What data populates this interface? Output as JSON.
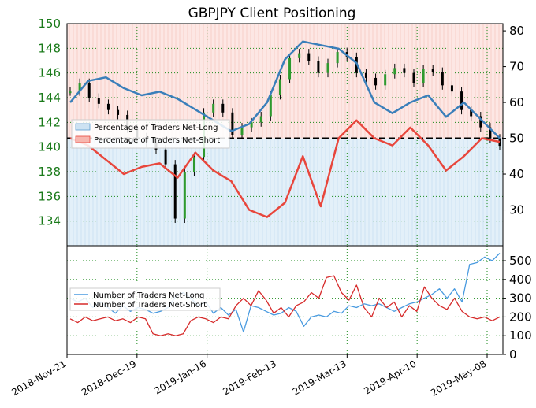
{
  "chart_data": [
    {
      "type": "line",
      "title": "GBPJPY Client Positioning",
      "price_axis": {
        "side": "left",
        "ylim": [
          132,
          150
        ],
        "ticks": [
          "134",
          "136",
          "138",
          "140",
          "142",
          "144",
          "146",
          "148",
          "150"
        ]
      },
      "sentiment_axis": {
        "side": "right",
        "ylim": [
          20,
          82
        ],
        "ticks": [
          "30",
          "40",
          "50",
          "60",
          "70",
          "80"
        ],
        "reference_line": 50
      },
      "x_tick_labels": [
        "2018-Nov-21",
        "2018-Dec-19",
        "2019-Jan-16",
        "2019-Feb-13",
        "2019-Mar-13",
        "2019-Apr-10",
        "2019-May-08"
      ],
      "legend": {
        "position": "center-left",
        "items": [
          "Percentage of Traders Net-Long",
          "Percentage of Traders Net-Short"
        ]
      },
      "series": [
        {
          "name": "Percentage of Traders Net-Long",
          "color": "#3a7fba",
          "values": [
            60,
            66,
            67,
            64,
            62,
            63,
            61,
            58,
            55,
            52,
            54,
            60,
            72,
            77,
            76,
            75,
            71,
            60,
            57,
            60,
            62,
            56,
            60,
            55,
            50
          ]
        },
        {
          "name": "Percentage of Traders Net-Short",
          "color": "#e8463c",
          "values": [
            50,
            48,
            44,
            40,
            42,
            43,
            39,
            46,
            41,
            38,
            30,
            28,
            32,
            45,
            31,
            50,
            55,
            50,
            48,
            53,
            48,
            41,
            45,
            50,
            49
          ]
        },
        {
          "name": "GBPJPY",
          "color": "#000000",
          "values": [
            144.5,
            145.2,
            144.0,
            143.5,
            143.0,
            142.6,
            141.5,
            140.8,
            140.4,
            139.8,
            138.6,
            134.2,
            138.0,
            139.2,
            142.8,
            143.5,
            142.8,
            141.0,
            141.6,
            142.0,
            142.5,
            144.2,
            145.5,
            147.2,
            147.6,
            147.0,
            146.0,
            146.8,
            147.7,
            147.3,
            146.0,
            145.6,
            145.0,
            145.9,
            146.4,
            146.0,
            145.2,
            146.3,
            146.1,
            145.0,
            144.5,
            143.0,
            142.5,
            141.6,
            140.7,
            140.1
          ]
        }
      ]
    },
    {
      "type": "line",
      "ylim": [
        0,
        580
      ],
      "y_ticks": [
        "0",
        "100",
        "200",
        "300",
        "400",
        "500"
      ],
      "legend": {
        "position": "upper-left",
        "items": [
          "Number of Traders Net-Long",
          "Number of Traders Net-Short"
        ]
      },
      "series": [
        {
          "name": "Number of Traders Net-Long",
          "color": "#4a9be0",
          "values": [
            300,
            280,
            300,
            250,
            280,
            250,
            220,
            260,
            230,
            250,
            240,
            220,
            230,
            250,
            310,
            330,
            300,
            260,
            280,
            220,
            250,
            210,
            240,
            120,
            260,
            250,
            230,
            210,
            220,
            250,
            230,
            150,
            200,
            210,
            200,
            230,
            220,
            260,
            250,
            270,
            260,
            270,
            250,
            230,
            250,
            270,
            280,
            300,
            320,
            350,
            300,
            350,
            280,
            480,
            490,
            520,
            500,
            540
          ]
        },
        {
          "name": "Number of Traders Net-Short",
          "color": "#d62a2a",
          "values": [
            190,
            170,
            200,
            180,
            190,
            200,
            180,
            190,
            170,
            200,
            190,
            110,
            100,
            110,
            100,
            110,
            180,
            200,
            190,
            170,
            200,
            190,
            260,
            300,
            260,
            340,
            290,
            220,
            250,
            200,
            260,
            280,
            330,
            300,
            410,
            420,
            330,
            290,
            370,
            250,
            200,
            300,
            250,
            280,
            200,
            260,
            230,
            360,
            300,
            260,
            240,
            300,
            230,
            200,
            190,
            200,
            180,
            200
          ]
        }
      ]
    }
  ]
}
